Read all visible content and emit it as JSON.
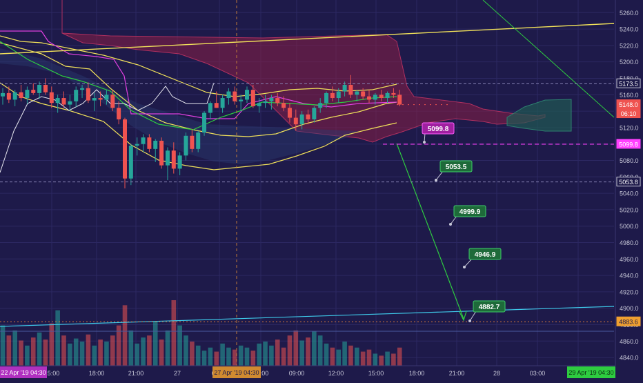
{
  "colors": {
    "background": "#1e1a4a",
    "grid": "#2c2862",
    "up_candle": "#26a69a",
    "down_candle": "#ef5350",
    "bollinger": "#f0e05a",
    "ichimoku_cloud_bear": "#8a1f45",
    "ichimoku_cloud_bull": "#1f5a52",
    "baseline": "#e040e0",
    "conversion": "#2ecc40",
    "lagging": "#e8e8f0",
    "trend_projection": "#2ecc40",
    "rising_trendline": "#f0e05a",
    "cyan_trendline": "#3ec8e8",
    "pink_level": "#ff40ff",
    "axis_text": "#c8c8d8"
  },
  "chart_data": {
    "type": "candlestick",
    "price_axis": {
      "ticks": [
        5260,
        5240,
        5220,
        5200,
        5180,
        5160,
        5140,
        5120,
        5100,
        5080,
        5060,
        5040,
        5020,
        5000,
        4980,
        4960,
        4940,
        4920,
        4900,
        4880,
        4860,
        4840
      ],
      "range": [
        4830,
        5272
      ]
    },
    "time_axis": {
      "ticks": [
        "15:00",
        "18:00",
        "21:00",
        "27",
        "03:00",
        "06:00",
        "09:00",
        "12:00",
        "15:00",
        "18:00",
        "21:00",
        "28",
        "03:00",
        "06:00"
      ],
      "range_labels": [
        "22 Apr '19   04:30",
        "27 Apr '19   04:30",
        "29 Apr '19   04:30"
      ]
    },
    "price_tags": [
      {
        "value": 5173.5,
        "label": "5173.5",
        "style": "dark"
      },
      {
        "value": 5148.0,
        "label": "5148.0",
        "style": "red"
      },
      {
        "value": null,
        "label": "06:10",
        "style": "red"
      },
      {
        "value": 5099.8,
        "label": "5099.8",
        "style": "magenta"
      },
      {
        "value": 5053.8,
        "label": "5053.8",
        "style": "dark"
      },
      {
        "value": 4883.6,
        "label": "4883.6",
        "style": "orange"
      }
    ],
    "target_callouts": [
      {
        "value": 5099.8,
        "label": "5099.8",
        "style": "magenta"
      },
      {
        "value": 5053.5,
        "label": "5053.5",
        "style": "green"
      },
      {
        "value": 4999.9,
        "label": "4999.9",
        "style": "green"
      },
      {
        "value": 4946.9,
        "label": "4946.9",
        "style": "green"
      },
      {
        "value": 4882.7,
        "label": "4882.7",
        "style": "green"
      }
    ],
    "candles": [
      [
        5158,
        5168,
        5148,
        5162
      ],
      [
        5162,
        5170,
        5150,
        5154
      ],
      [
        5154,
        5166,
        5146,
        5163
      ],
      [
        5163,
        5172,
        5152,
        5156
      ],
      [
        5156,
        5170,
        5149,
        5166
      ],
      [
        5166,
        5174,
        5160,
        5162
      ],
      [
        5162,
        5176,
        5155,
        5172
      ],
      [
        5172,
        5180,
        5160,
        5163
      ],
      [
        5163,
        5170,
        5144,
        5150
      ],
      [
        5150,
        5160,
        5138,
        5156
      ],
      [
        5156,
        5164,
        5144,
        5148
      ],
      [
        5148,
        5160,
        5140,
        5152
      ],
      [
        5152,
        5170,
        5145,
        5166
      ],
      [
        5166,
        5172,
        5156,
        5168
      ],
      [
        5168,
        5175,
        5150,
        5153
      ],
      [
        5153,
        5162,
        5140,
        5156
      ],
      [
        5156,
        5164,
        5146,
        5154
      ],
      [
        5154,
        5166,
        5148,
        5160
      ],
      [
        5160,
        5165,
        5140,
        5144
      ],
      [
        5144,
        5152,
        5124,
        5130
      ],
      [
        5130,
        5132,
        5046,
        5058
      ],
      [
        5058,
        5100,
        5050,
        5098
      ],
      [
        5098,
        5108,
        5086,
        5100
      ],
      [
        5100,
        5112,
        5090,
        5108
      ],
      [
        5108,
        5112,
        5090,
        5094
      ],
      [
        5094,
        5106,
        5078,
        5104
      ],
      [
        5104,
        5108,
        5070,
        5074
      ],
      [
        5074,
        5096,
        5056,
        5092
      ],
      [
        5092,
        5102,
        5064,
        5070
      ],
      [
        5070,
        5090,
        5062,
        5086
      ],
      [
        5086,
        5114,
        5080,
        5110
      ],
      [
        5110,
        5118,
        5090,
        5094
      ],
      [
        5094,
        5116,
        5090,
        5114
      ],
      [
        5114,
        5140,
        5110,
        5138
      ],
      [
        5138,
        5152,
        5130,
        5150
      ],
      [
        5150,
        5164,
        5144,
        5144
      ],
      [
        5144,
        5160,
        5138,
        5156
      ],
      [
        5156,
        5168,
        5148,
        5164
      ],
      [
        5164,
        5170,
        5148,
        5152
      ],
      [
        5152,
        5160,
        5140,
        5154
      ],
      [
        5154,
        5170,
        5150,
        5166
      ],
      [
        5166,
        5172,
        5144,
        5146
      ],
      [
        5146,
        5156,
        5138,
        5150
      ],
      [
        5150,
        5160,
        5144,
        5152
      ],
      [
        5152,
        5160,
        5142,
        5156
      ],
      [
        5156,
        5162,
        5146,
        5150
      ],
      [
        5150,
        5158,
        5140,
        5144
      ],
      [
        5144,
        5150,
        5126,
        5132
      ],
      [
        5132,
        5142,
        5116,
        5124
      ],
      [
        5124,
        5140,
        5118,
        5136
      ],
      [
        5136,
        5142,
        5124,
        5130
      ],
      [
        5130,
        5146,
        5126,
        5144
      ],
      [
        5144,
        5156,
        5138,
        5150
      ],
      [
        5150,
        5164,
        5144,
        5162
      ],
      [
        5162,
        5170,
        5152,
        5156
      ],
      [
        5156,
        5168,
        5150,
        5164
      ],
      [
        5164,
        5176,
        5158,
        5172
      ],
      [
        5172,
        5184,
        5156,
        5160
      ],
      [
        5160,
        5166,
        5152,
        5164
      ],
      [
        5164,
        5168,
        5154,
        5158
      ],
      [
        5158,
        5166,
        5150,
        5154
      ],
      [
        5154,
        5162,
        5148,
        5160
      ],
      [
        5160,
        5166,
        5152,
        5156
      ],
      [
        5156,
        5164,
        5150,
        5162
      ],
      [
        5162,
        5168,
        5156,
        5160
      ],
      [
        5160,
        5166,
        5146,
        5148
      ]
    ],
    "volumes": [
      40,
      30,
      35,
      25,
      20,
      28,
      33,
      26,
      42,
      55,
      30,
      22,
      27,
      24,
      31,
      20,
      26,
      24,
      30,
      40,
      60,
      35,
      22,
      28,
      30,
      44,
      26,
      35,
      65,
      40,
      30,
      24,
      20,
      15,
      18,
      14,
      22,
      18,
      16,
      20,
      18,
      15,
      22,
      24,
      20,
      26,
      18,
      30,
      35,
      25,
      28,
      34,
      30,
      22,
      18,
      16,
      24,
      20,
      18,
      14,
      16,
      12,
      10,
      14,
      12,
      18
    ]
  }
}
